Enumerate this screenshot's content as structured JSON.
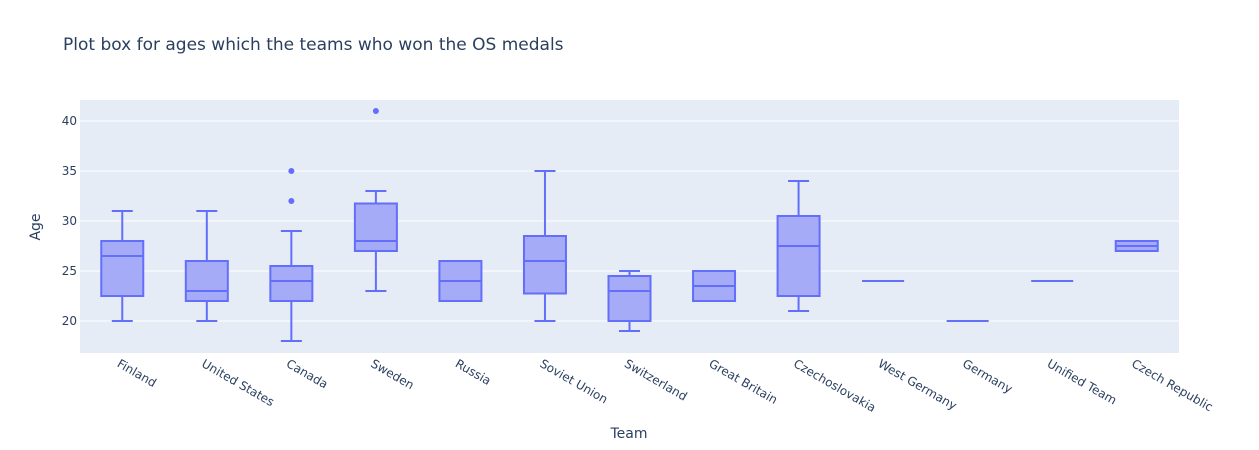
{
  "chart_data": {
    "type": "box",
    "title": "Plot box for ages which the teams who won the OS medals",
    "xlabel": "Team",
    "ylabel": "Age",
    "ylim": [
      16.8,
      42.1
    ],
    "yticks": [
      20,
      25,
      30,
      35,
      40
    ],
    "grid": true,
    "colors": {
      "plot_bg": "#e5ecf6",
      "grid": "#ffffff",
      "box_fill": "#a5abf7",
      "box_line": "#636efa",
      "text": "#2a3f5f"
    },
    "categories": [
      "Finland",
      "United States",
      "Canada",
      "Sweden",
      "Russia",
      "Soviet Union",
      "Switzerland",
      "Great Britain",
      "Czechoslovakia",
      "West Germany",
      "Germany",
      "Unified Team",
      "Czech Republic"
    ],
    "boxes": [
      {
        "team": "Finland",
        "min": 20,
        "q1": 22.5,
        "median": 26.5,
        "q3": 28,
        "max": 31,
        "outliers": []
      },
      {
        "team": "United States",
        "min": 20,
        "q1": 22,
        "median": 23,
        "q3": 26,
        "max": 31,
        "outliers": []
      },
      {
        "team": "Canada",
        "min": 18,
        "q1": 22,
        "median": 24,
        "q3": 25.5,
        "max": 29,
        "outliers": [
          32,
          35
        ]
      },
      {
        "team": "Sweden",
        "min": 23,
        "q1": 27,
        "median": 28,
        "q3": 31.75,
        "max": 33,
        "outliers": [
          41
        ]
      },
      {
        "team": "Russia",
        "min": 22,
        "q1": 22,
        "median": 24,
        "q3": 26,
        "max": 26,
        "outliers": []
      },
      {
        "team": "Soviet Union",
        "min": 20,
        "q1": 22.75,
        "median": 26,
        "q3": 28.5,
        "max": 35,
        "outliers": []
      },
      {
        "team": "Switzerland",
        "min": 19,
        "q1": 20,
        "median": 23,
        "q3": 24.5,
        "max": 25,
        "outliers": []
      },
      {
        "team": "Great Britain",
        "min": 22,
        "q1": 22,
        "median": 23.5,
        "q3": 25,
        "max": 25,
        "outliers": []
      },
      {
        "team": "Czechoslovakia",
        "min": 21,
        "q1": 22.5,
        "median": 27.5,
        "q3": 30.5,
        "max": 34,
        "outliers": []
      },
      {
        "team": "West Germany",
        "min": 24,
        "q1": 24,
        "median": 24,
        "q3": 24,
        "max": 24,
        "outliers": []
      },
      {
        "team": "Germany",
        "min": 20,
        "q1": 20,
        "median": 20,
        "q3": 20,
        "max": 20,
        "outliers": []
      },
      {
        "team": "Unified Team",
        "min": 24,
        "q1": 24,
        "median": 24,
        "q3": 24,
        "max": 24,
        "outliers": []
      },
      {
        "team": "Czech Republic",
        "min": 27,
        "q1": 27,
        "median": 27.5,
        "q3": 28,
        "max": 28,
        "outliers": []
      }
    ]
  }
}
